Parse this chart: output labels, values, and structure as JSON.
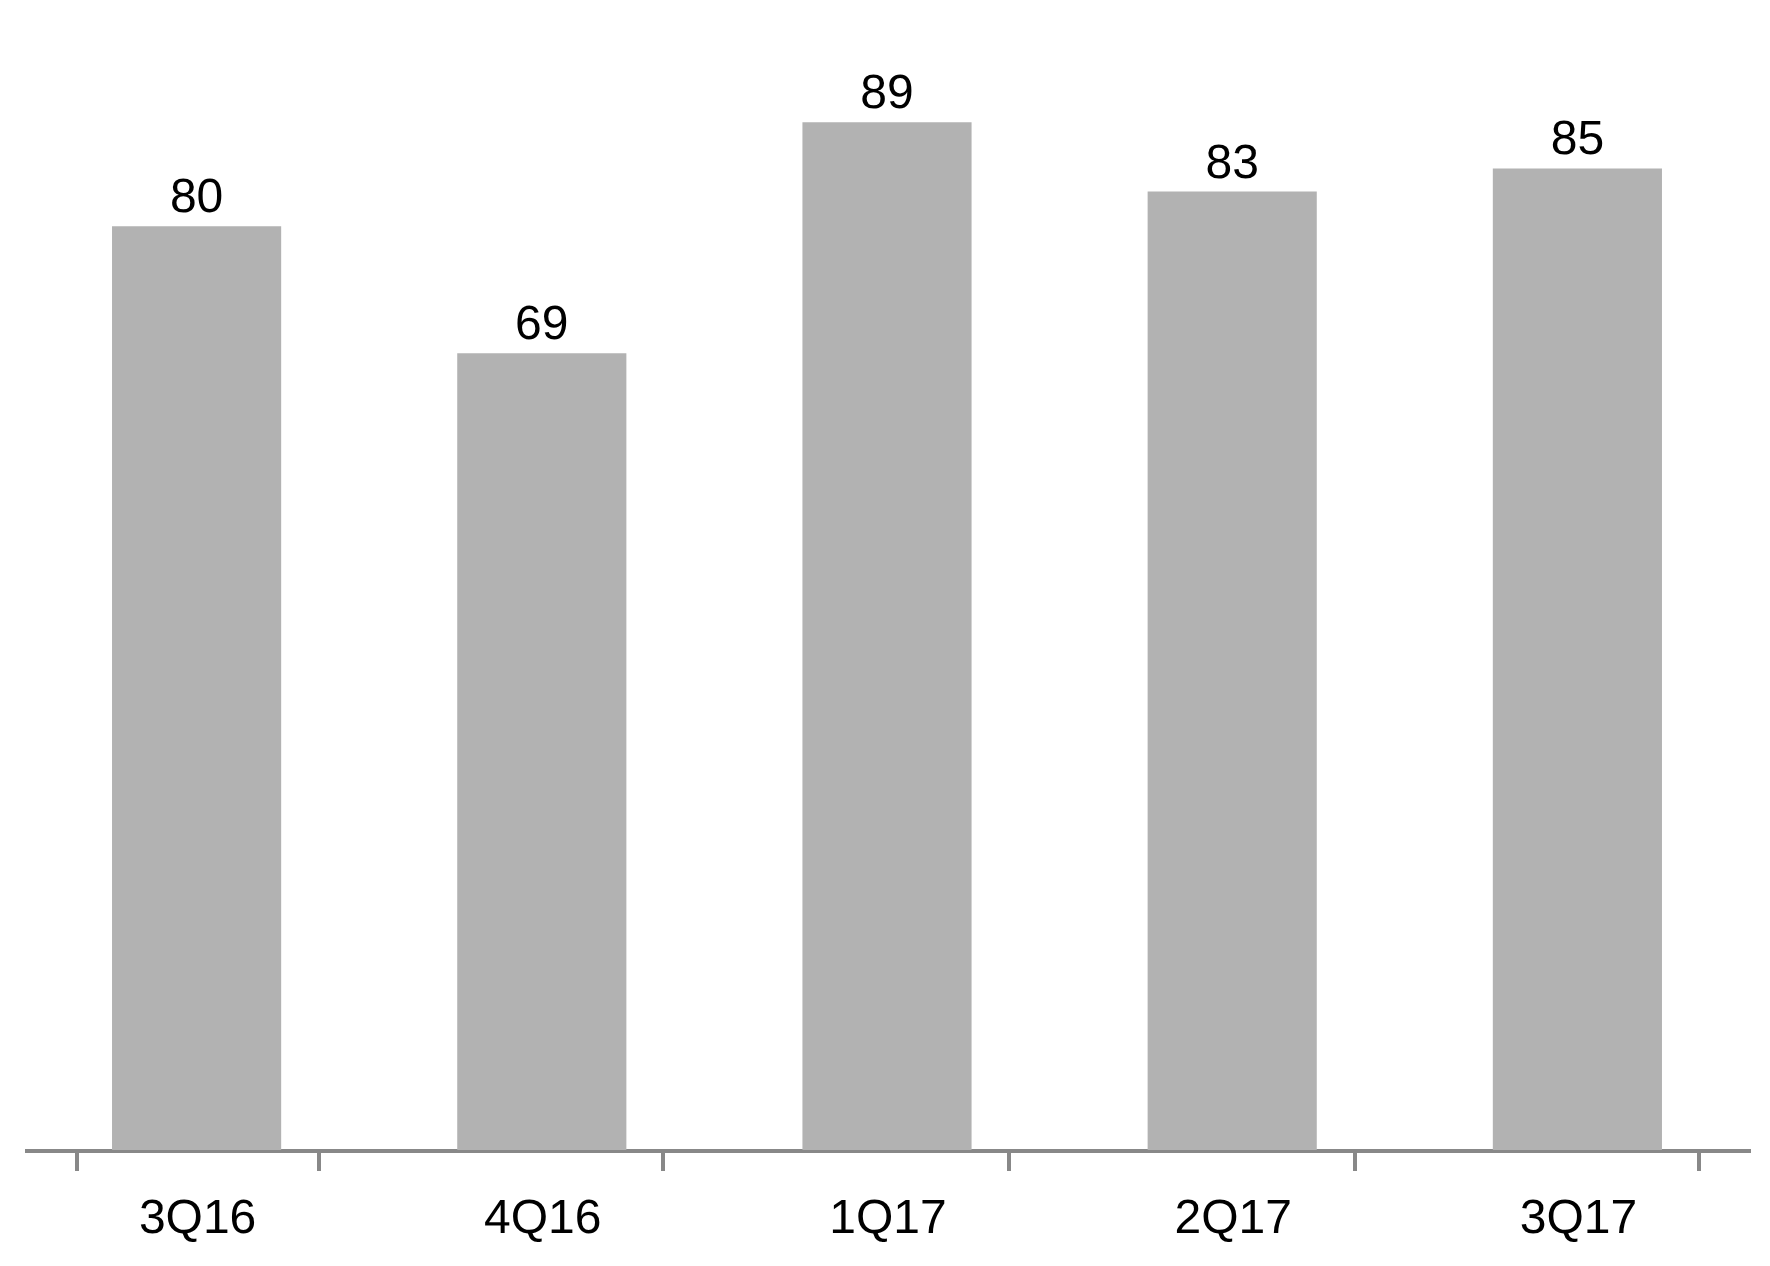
{
  "chart_data": {
    "type": "bar",
    "categories": [
      "3Q16",
      "4Q16",
      "1Q17",
      "2Q17",
      "3Q17"
    ],
    "values": [
      80,
      69,
      89,
      83,
      85
    ],
    "color": "#b2b2b2",
    "data_labels": true
  }
}
